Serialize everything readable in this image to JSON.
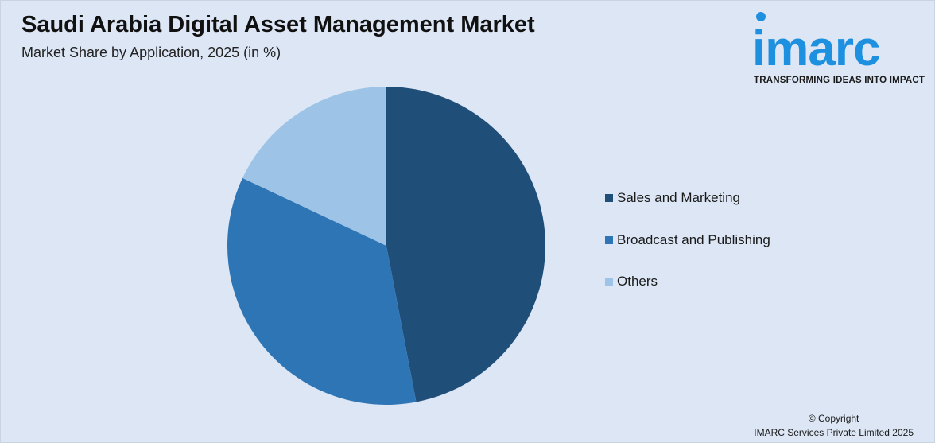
{
  "header": {
    "title": "Saudi Arabia Digital Asset Management Market",
    "subtitle": "Market Share by Application, 2025 (in %)"
  },
  "logo": {
    "word": "imarc",
    "tagline": "TRANSFORMING IDEAS INTO IMPACT"
  },
  "chart_data": {
    "type": "pie",
    "categories": [
      "Sales and Marketing",
      "Broadcast and Publishing",
      "Others"
    ],
    "values": [
      47,
      35,
      18
    ],
    "colors": [
      "#1f4e79",
      "#2e75b6",
      "#9dc3e6"
    ],
    "title": "Saudi Arabia Digital Asset Management Market",
    "subtitle": "Market Share by Application, 2025 (in %)",
    "legend_position": "right"
  },
  "footer": {
    "copyright_line1": "© Copyright",
    "copyright_line2": "IMARC Services Private Limited 2025"
  }
}
